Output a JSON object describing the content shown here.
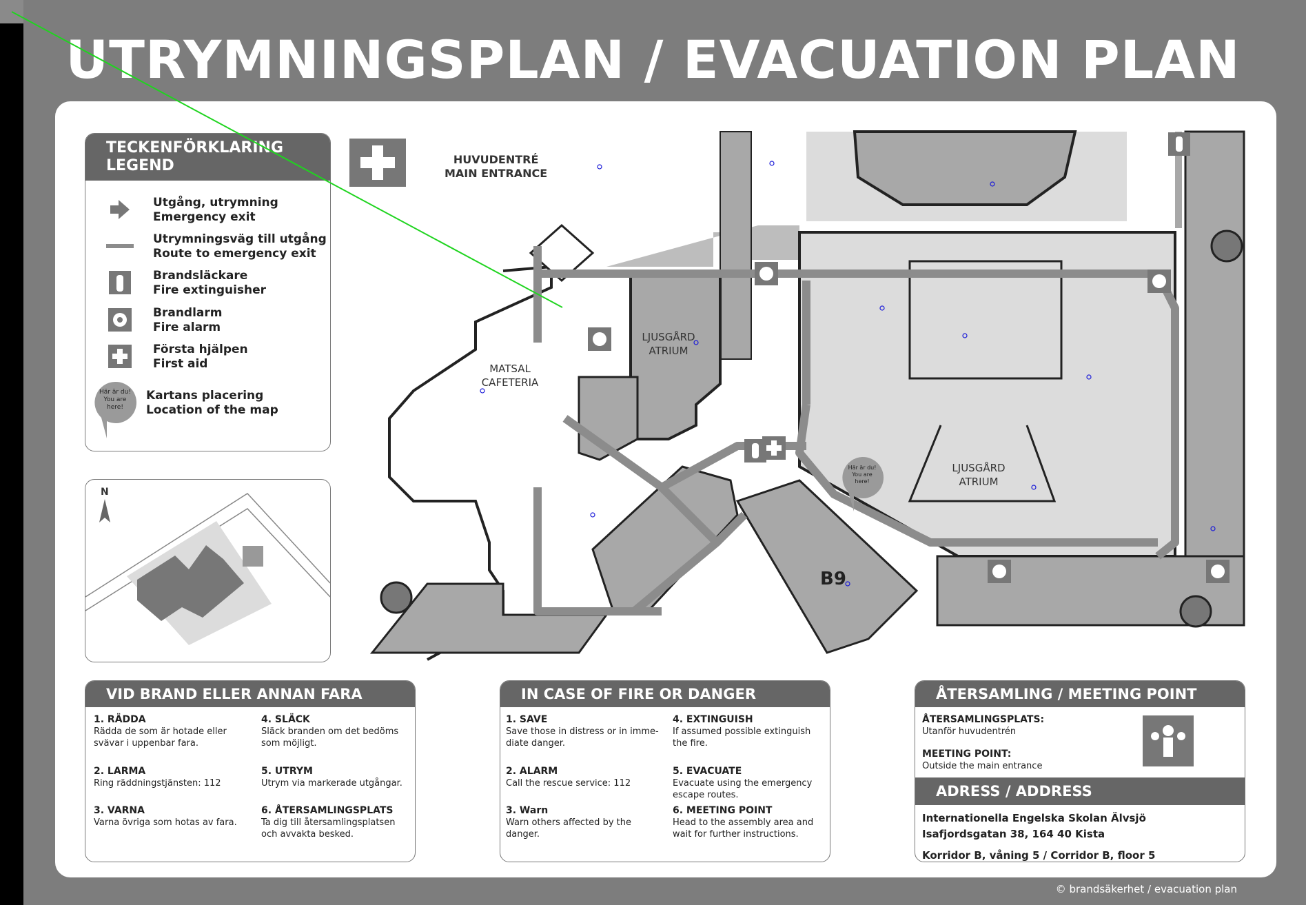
{
  "title": "UTRYMNINGSPLAN / EVACUATION PLAN",
  "legend": {
    "heading_sv": "TECKENFÖRKLARING",
    "heading_en": "LEGEND",
    "items": [
      {
        "icon": "emergency-exit-icon",
        "sv": "Utgång, utrymning",
        "en": "Emergency exit"
      },
      {
        "icon": "route-icon",
        "sv": "Utrymningsväg till utgång",
        "en": "Route to emergency exit"
      },
      {
        "icon": "fire-extinguisher-icon",
        "sv": "Brandsläckare",
        "en": "Fire extinguisher"
      },
      {
        "icon": "fire-alarm-icon",
        "sv": "Brandlarm",
        "en": "Fire alarm"
      },
      {
        "icon": "first-aid-icon",
        "sv": "Första hjälpen",
        "en": "First aid"
      },
      {
        "icon": "you-are-here-icon",
        "sv": "Kartans placering",
        "en": "Location of the map",
        "bubble": "Här är du! You are here!"
      }
    ]
  },
  "minimap": {
    "north": "N"
  },
  "floorplan": {
    "main_entrance_sv": "HUVUDENTRÉ",
    "main_entrance_en": "MAIN ENTRANCE",
    "rooms": [
      {
        "sv": "MATSAL",
        "en": "CAFETERIA"
      },
      {
        "sv": "LJUSGÅRD",
        "en": "ATRIUM"
      },
      {
        "sv": "LJUSGÅRD",
        "en": "ATRIUM"
      }
    ],
    "wing": "B9",
    "you_are_here": "Här är du! You are here!"
  },
  "panel_sv": {
    "heading": "VID BRAND ELLER ANNAN FARA",
    "steps": [
      {
        "title": "1. RÄDDA",
        "text": "Rädda de som är hotade eller svävar i uppenbar fara."
      },
      {
        "title": "2. LARMA",
        "text": "Ring räddningstjänsten: 112"
      },
      {
        "title": "3. VARNA",
        "text": "Varna övriga som hotas av fara."
      },
      {
        "title": "4. SLÄCK",
        "text": "Släck branden om det bedöms som möjligt."
      },
      {
        "title": "5. UTRYM",
        "text": "Utrym via markerade utgångar."
      },
      {
        "title": "6. ÅTERSAMLINGSPLATS",
        "text": "Ta dig till återsamlingsplatsen och avvakta besked."
      }
    ]
  },
  "panel_en": {
    "heading": "IN CASE OF FIRE OR DANGER",
    "steps": [
      {
        "title": "1. SAVE",
        "text": "Save those in distress or in imme-diate danger."
      },
      {
        "title": "2. ALARM",
        "text": "Call the rescue service: 112"
      },
      {
        "title": "3. Warn",
        "text": "Warn others affected by the danger."
      },
      {
        "title": "4. EXTINGUISH",
        "text": "If assumed possible extinguish the fire."
      },
      {
        "title": "5. EVACUATE",
        "text": "Evacuate using the emergency escape routes."
      },
      {
        "title": "6. MEETING POINT",
        "text": "Head to the assembly area and wait for further instructions."
      }
    ]
  },
  "panel_meet": {
    "heading": "ÅTERSAMLING / MEETING POINT",
    "sv_title": "ÅTERSAMLINGSPLATS:",
    "sv_text": "Utanför huvudentrén",
    "en_title": "MEETING POINT:",
    "en_text": "Outside the main entrance",
    "address_heading": "ADRESS / ADDRESS",
    "address_lines": [
      "Internationella Engelska Skolan Älvsjö",
      "Isafjordsgatan 38, 164 40 Kista",
      "Korridor B, våning 5 / Corridor B, floor 5"
    ]
  },
  "footer": "© brandsäkerhet / evacuation plan",
  "colors": {
    "background": "#7d7d7d",
    "board": "#ffffff",
    "room": "#a8a8a8",
    "atrium": "#dcdcdc",
    "route": "#8c8c8c",
    "annot": "#1a1ad8",
    "pointer": "#1fd41f"
  }
}
